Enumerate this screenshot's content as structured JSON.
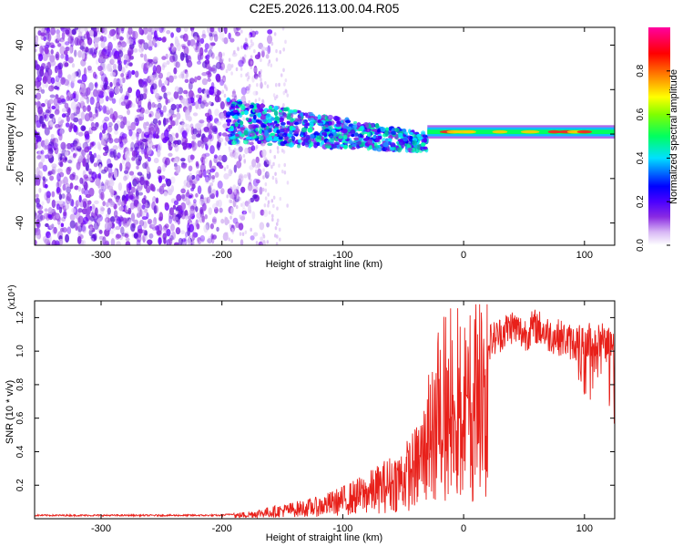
{
  "title": "C2E5.2026.113.00.04.R05",
  "chart_data": [
    {
      "type": "heatmap",
      "xlabel": "Height of straight line (km)",
      "ylabel": "Frequency (Hz)",
      "xlim": [
        -355,
        125
      ],
      "ylim": [
        -50,
        48
      ],
      "xticks": [
        -300,
        -200,
        -100,
        0,
        100
      ],
      "yticks": [
        -40,
        -20,
        0,
        20,
        40
      ],
      "colorbar": {
        "label": "Normalized spectral amplitude",
        "range": [
          0.0,
          1.0
        ],
        "ticks": [
          "0.0",
          "0.2",
          "0.4",
          "0.6",
          "0.8"
        ],
        "tick_values": [
          0.0,
          0.2,
          0.4,
          0.6,
          0.8
        ],
        "colors": [
          "#ffffff",
          "#d8b8f5",
          "#8a2be2",
          "#6a00ff",
          "#0000ff",
          "#00e0ff",
          "#00ff00",
          "#ffff00",
          "#ff8000",
          "#ff0000",
          "#ff00a0"
        ]
      },
      "regions": [
        {
          "name": "noise",
          "x": [
            -355,
            -160
          ],
          "freq": [
            -50,
            48
          ],
          "amplitude": 0.2
        },
        {
          "name": "transition",
          "x": [
            -195,
            -30
          ],
          "freq_center": [
            6,
            -4
          ],
          "freq_halfwidth": [
            10,
            4
          ],
          "amplitude": 0.35
        },
        {
          "name": "stable-signal",
          "x": [
            -30,
            125
          ],
          "freq": [
            1,
            1
          ],
          "amplitude": 0.75
        }
      ]
    },
    {
      "type": "line",
      "xlabel": "Height of straight line (km)",
      "ylabel": "SNR (10 * v/v)",
      "y_multiplier": "(x10⁴)",
      "xlim": [
        -355,
        125
      ],
      "ylim": [
        0.0,
        1.3
      ],
      "xticks": [
        -300,
        -200,
        -100,
        0,
        100
      ],
      "yticks": [
        0.2,
        0.4,
        0.6,
        0.8,
        1.0,
        1.2
      ],
      "series": [
        {
          "name": "SNR",
          "color": "#e8201a",
          "x": [
            -355,
            -300,
            -250,
            -200,
            -180,
            -150,
            -120,
            -100,
            -80,
            -60,
            -50,
            -40,
            -30,
            -20,
            -10,
            0,
            10,
            20,
            30,
            40,
            50,
            60,
            70,
            80,
            90,
            100,
            110,
            120,
            125
          ],
          "y": [
            0.02,
            0.02,
            0.02,
            0.02,
            0.04,
            0.08,
            0.12,
            0.18,
            0.25,
            0.35,
            0.4,
            0.5,
            0.7,
            0.85,
            0.95,
            0.8,
            0.95,
            1.05,
            1.1,
            1.15,
            1.1,
            1.15,
            1.1,
            1.08,
            1.05,
            1.05,
            1.08,
            1.05,
            1.0
          ]
        }
      ]
    }
  ]
}
